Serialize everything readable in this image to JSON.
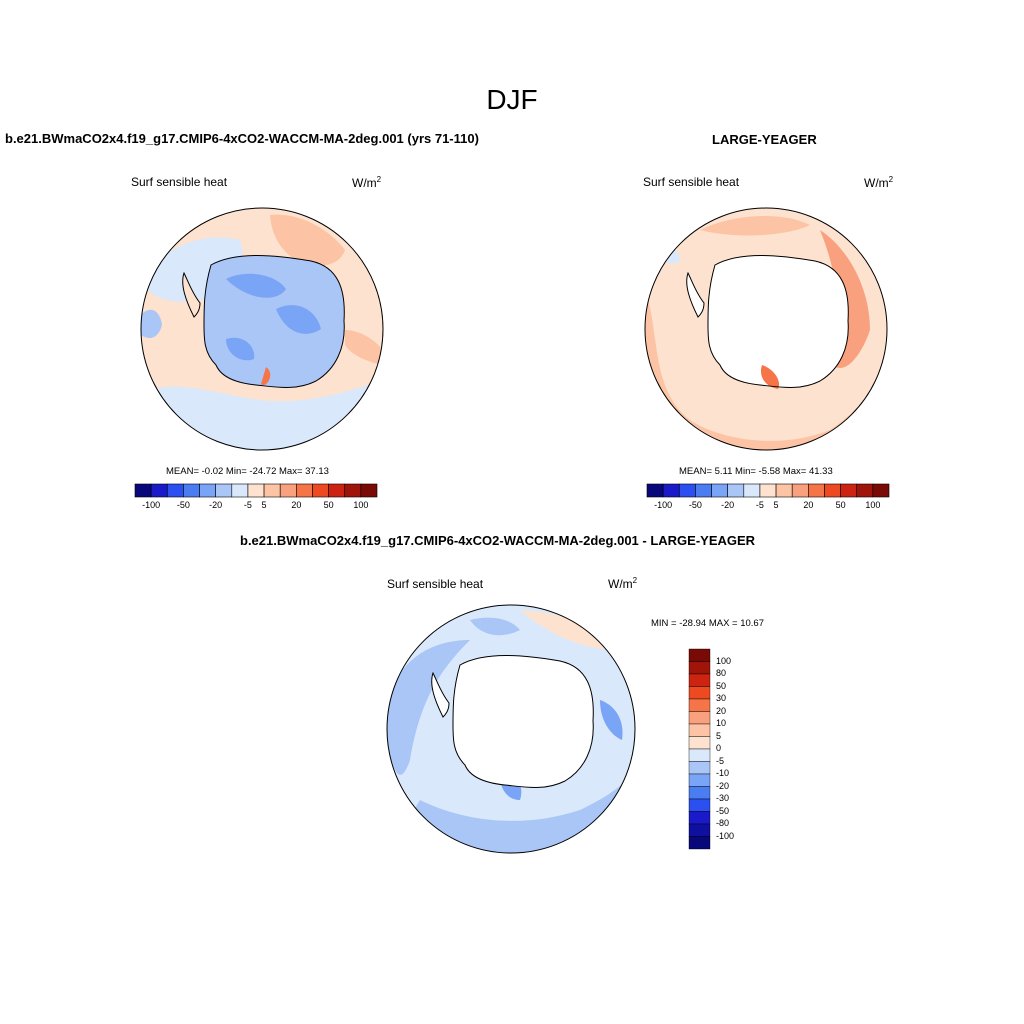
{
  "season": "DJF",
  "panels": [
    {
      "title": "b.e21.BWmaCO2x4.f19_g17.CMIP6-4xCO2-WACCM-MA-2deg.001 (yrs 71-110)",
      "variable": "Surf sensible heat",
      "units": "W/m",
      "units_exp": "2",
      "stats": "MEAN=  -0.02  Min= -24.72  Max=  37.13"
    },
    {
      "title": "LARGE-YEAGER",
      "variable": "Surf sensible heat",
      "units": "W/m",
      "units_exp": "2",
      "stats": "MEAN=   5.11  Min=  -5.58  Max=  41.33"
    },
    {
      "title": "b.e21.BWmaCO2x4.f19_g17.CMIP6-4xCO2-WACCM-MA-2deg.001 - LARGE-YEAGER",
      "variable": "Surf sensible heat",
      "units": "W/m",
      "units_exp": "2",
      "stats": "MIN = -28.94 MAX =  10.67"
    }
  ],
  "chart_data": [
    {
      "type": "heatmap",
      "title": "b.e21.BWmaCO2x4.f19_g17.CMIP6-4xCO2-WACCM-MA-2deg.001 (yrs 71-110)",
      "variable": "Surf sensible heat",
      "projection": "south polar stereographic",
      "units": "W/m2",
      "mean": -0.02,
      "min": -24.72,
      "max": 37.13,
      "colorbar_levels": [
        -100,
        -50,
        -20,
        -5,
        5,
        20,
        50,
        100
      ],
      "colorbar_colors": [
        "#08087a",
        "#1a1ac8",
        "#2b4ff0",
        "#4a7cf2",
        "#7aa4f5",
        "#aac6f7",
        "#d9e8fb",
        "#fde2cf",
        "#fcc4a4",
        "#f9a07e",
        "#f57548",
        "#ee4a22",
        "#cc2410",
        "#a0150a",
        "#7a0a05"
      ]
    },
    {
      "type": "heatmap",
      "title": "LARGE-YEAGER",
      "variable": "Surf sensible heat",
      "projection": "south polar stereographic",
      "units": "W/m2",
      "mean": 5.11,
      "min": -5.58,
      "max": 41.33,
      "colorbar_levels": [
        -100,
        -50,
        -20,
        -5,
        5,
        20,
        50,
        100
      ],
      "colorbar_colors": [
        "#08087a",
        "#1a1ac8",
        "#2b4ff0",
        "#4a7cf2",
        "#7aa4f5",
        "#aac6f7",
        "#d9e8fb",
        "#fde2cf",
        "#fcc4a4",
        "#f9a07e",
        "#f57548",
        "#ee4a22",
        "#cc2410",
        "#a0150a",
        "#7a0a05"
      ]
    },
    {
      "type": "heatmap",
      "title": "b.e21.BWmaCO2x4.f19_g17.CMIP6-4xCO2-WACCM-MA-2deg.001 - LARGE-YEAGER",
      "variable": "Surf sensible heat",
      "projection": "south polar stereographic",
      "units": "W/m2",
      "min": -28.94,
      "max": 10.67,
      "colorbar_levels": [
        100,
        80,
        50,
        30,
        20,
        10,
        5,
        0,
        -5,
        -10,
        -20,
        -30,
        -50,
        -80,
        -100
      ],
      "colorbar_colors": [
        "#7a0a05",
        "#a0150a",
        "#cc2410",
        "#ee4a22",
        "#f57548",
        "#f9a07e",
        "#fcc4a4",
        "#fde2cf",
        "#d9e8fb",
        "#aac6f7",
        "#7aa4f5",
        "#4a7cf2",
        "#2b4ff0",
        "#1a1ac8",
        "#0f0fa0",
        "#08087a"
      ]
    }
  ]
}
